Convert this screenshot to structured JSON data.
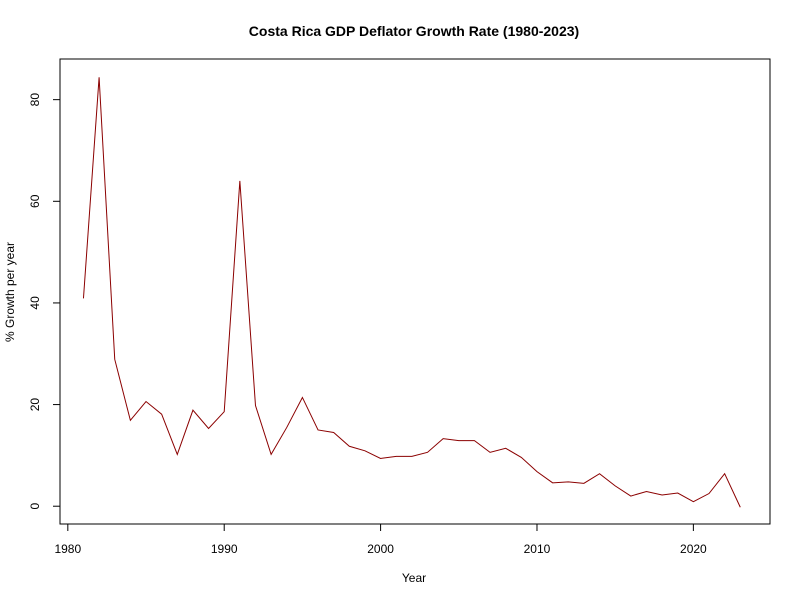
{
  "chart_data": {
    "type": "line",
    "title": "Costa Rica GDP Deflator Growth Rate (1980-2023)",
    "xlabel": "Year",
    "ylabel": "% Growth per year",
    "xlim": [
      1979.5,
      2024.9
    ],
    "ylim": [
      -3.5,
      88
    ],
    "xticks": [
      1980,
      1990,
      2000,
      2010,
      2020
    ],
    "yticks": [
      0,
      20,
      40,
      60,
      80
    ],
    "grid": false,
    "line_color": "#8b0000",
    "series": [
      {
        "x": [
          1981,
          1982,
          1983,
          1984,
          1985,
          1986,
          1987,
          1988,
          1989,
          1990,
          1991,
          1992,
          1993,
          1994,
          1995,
          1996,
          1997,
          1998,
          1999,
          2000,
          2001,
          2002,
          2003,
          2004,
          2005,
          2006,
          2007,
          2008,
          2009,
          2010,
          2011,
          2012,
          2013,
          2014,
          2015,
          2016,
          2017,
          2018,
          2019,
          2020,
          2021,
          2022,
          2023
        ],
        "values": [
          40.9,
          84.4,
          28.9,
          16.9,
          20.6,
          18.1,
          10.2,
          18.9,
          15.3,
          18.6,
          64.0,
          19.8,
          10.2,
          15.5,
          21.4,
          15.0,
          14.5,
          11.8,
          10.9,
          9.4,
          9.8,
          9.8,
          10.6,
          13.3,
          12.9,
          12.9,
          10.6,
          11.4,
          9.6,
          6.8,
          4.6,
          4.8,
          4.5,
          6.4,
          4.0,
          2.0,
          2.9,
          2.2,
          2.6,
          0.9,
          2.5,
          6.4,
          -0.2
        ]
      }
    ]
  }
}
